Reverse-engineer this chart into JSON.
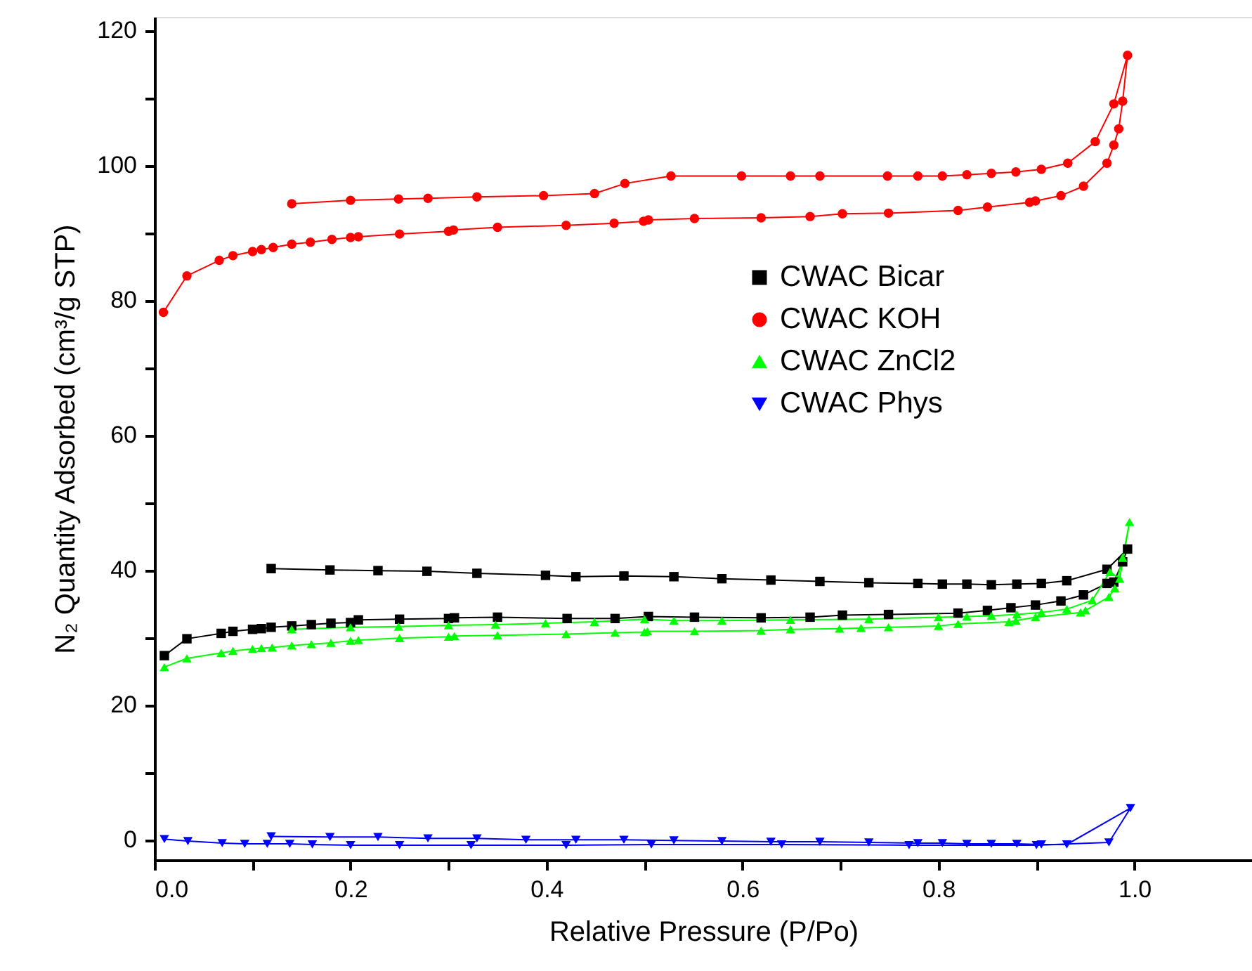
{
  "chart_data": {
    "type": "line",
    "xlabel": "Relative Pressure (P/Po)",
    "ylabel": "N₂ Quantity Adsorbed (cm³/g STP)",
    "xlim": [
      0,
      1.12
    ],
    "ylim": [
      -3,
      122
    ],
    "xticks": [
      {
        "value": 0,
        "label": "0.0"
      },
      {
        "value": 0.1,
        "label": null
      },
      {
        "value": 0.2,
        "label": "0.2"
      },
      {
        "value": 0.3,
        "label": null
      },
      {
        "value": 0.4,
        "label": "0.4"
      },
      {
        "value": 0.5,
        "label": null
      },
      {
        "value": 0.6,
        "label": "0.6"
      },
      {
        "value": 0.7,
        "label": null
      },
      {
        "value": 0.8,
        "label": "0.8"
      },
      {
        "value": 0.9,
        "label": null
      },
      {
        "value": 1.0,
        "label": "1.0"
      }
    ],
    "yticks": [
      0,
      {
        "value": 10,
        "label": null
      },
      20,
      {
        "value": 30,
        "label": null
      },
      40,
      {
        "value": 50,
        "label": null
      },
      60,
      {
        "value": 70,
        "label": null
      },
      80,
      {
        "value": 90,
        "label": null
      },
      100,
      {
        "value": 110,
        "label": null
      },
      120
    ],
    "grid": false,
    "legend": "right",
    "line_style": "solid",
    "series": [
      {
        "name": "CWAC Bicar",
        "color": "#000000",
        "marker": "square",
        "x": [
          0.01,
          0.033,
          0.068,
          0.08,
          0.1,
          0.109,
          0.119,
          0.14,
          0.16,
          0.18,
          0.2,
          0.208,
          0.25,
          0.3,
          0.306,
          0.35,
          0.421,
          0.47,
          0.504,
          0.551,
          0.619,
          0.669,
          0.702,
          0.749,
          0.82,
          0.85,
          0.874,
          0.899,
          0.925,
          0.948,
          0.972,
          0.979,
          0.988,
          0.993,
          0.972,
          0.931,
          0.905,
          0.88,
          0.854,
          0.829,
          0.804,
          0.779,
          0.729,
          0.679,
          0.629,
          0.579,
          0.53,
          0.479,
          0.43,
          0.399,
          0.329,
          0.278,
          0.228,
          0.179,
          0.119
        ],
        "values": [
          27.3,
          29.8,
          30.6,
          30.9,
          31.2,
          31.3,
          31.5,
          31.7,
          31.9,
          32.1,
          32.2,
          32.6,
          32.7,
          32.8,
          32.9,
          33.0,
          32.8,
          32.8,
          33.1,
          33.0,
          32.9,
          33.0,
          33.3,
          33.4,
          33.6,
          34.0,
          34.4,
          34.8,
          35.4,
          36.3,
          38.0,
          38.2,
          41.2,
          43.1,
          40.1,
          38.4,
          38.0,
          37.9,
          37.8,
          37.9,
          37.9,
          38.0,
          38.1,
          38.3,
          38.5,
          38.7,
          39.0,
          39.1,
          39.0,
          39.2,
          39.5,
          39.8,
          39.9,
          40.0,
          40.2
        ]
      },
      {
        "name": "CWAC KOH",
        "color": "#ff0000",
        "marker": "circle",
        "x": [
          0.009,
          0.033,
          0.066,
          0.08,
          0.1,
          0.109,
          0.121,
          0.14,
          0.159,
          0.181,
          0.2,
          0.208,
          0.25,
          0.3,
          0.305,
          0.35,
          0.42,
          0.469,
          0.499,
          0.504,
          0.551,
          0.619,
          0.669,
          0.702,
          0.749,
          0.82,
          0.85,
          0.893,
          0.899,
          0.925,
          0.948,
          0.972,
          0.979,
          0.984,
          0.988,
          0.993,
          0.979,
          0.96,
          0.932,
          0.905,
          0.879,
          0.854,
          0.829,
          0.804,
          0.779,
          0.748,
          0.679,
          0.649,
          0.599,
          0.527,
          0.48,
          0.449,
          0.397,
          0.329,
          0.279,
          0.249,
          0.2,
          0.14
        ],
        "values": [
          78.2,
          83.6,
          85.9,
          86.6,
          87.2,
          87.5,
          87.8,
          88.3,
          88.6,
          89.0,
          89.3,
          89.4,
          89.8,
          90.2,
          90.4,
          90.8,
          91.1,
          91.4,
          91.7,
          91.9,
          92.1,
          92.2,
          92.4,
          92.8,
          92.9,
          93.3,
          93.8,
          94.5,
          94.7,
          95.5,
          96.9,
          100.3,
          103.0,
          105.4,
          109.5,
          116.3,
          109.1,
          103.5,
          100.3,
          99.4,
          99.0,
          98.8,
          98.6,
          98.4,
          98.4,
          98.4,
          98.4,
          98.4,
          98.4,
          98.4,
          97.3,
          95.8,
          95.5,
          95.3,
          95.1,
          95.0,
          94.8,
          94.3
        ]
      },
      {
        "name": "CWAC ZnCl2",
        "color": "#00ff00",
        "marker": "triangle",
        "x": [
          0.01,
          0.033,
          0.068,
          0.08,
          0.1,
          0.109,
          0.12,
          0.14,
          0.16,
          0.18,
          0.2,
          0.208,
          0.25,
          0.3,
          0.306,
          0.35,
          0.42,
          0.47,
          0.5,
          0.503,
          0.551,
          0.619,
          0.649,
          0.699,
          0.721,
          0.749,
          0.8,
          0.82,
          0.872,
          0.879,
          0.899,
          0.945,
          0.95,
          0.974,
          0.98,
          0.988,
          0.995,
          0.985,
          0.975,
          0.957,
          0.931,
          0.905,
          0.88,
          0.854,
          0.829,
          0.8,
          0.729,
          0.649,
          0.579,
          0.53,
          0.5,
          0.449,
          0.399,
          0.348,
          0.3,
          0.249,
          0.2,
          0.14
        ],
        "values": [
          25.6,
          26.9,
          27.7,
          28.0,
          28.3,
          28.4,
          28.5,
          28.8,
          29.0,
          29.2,
          29.5,
          29.6,
          29.9,
          30.1,
          30.2,
          30.3,
          30.5,
          30.7,
          30.8,
          30.9,
          30.9,
          31.0,
          31.2,
          31.3,
          31.4,
          31.5,
          31.7,
          32.0,
          32.3,
          32.5,
          33.0,
          33.7,
          34.0,
          36.0,
          37.3,
          41.8,
          47.1,
          38.7,
          39.7,
          35.5,
          34.2,
          33.7,
          33.4,
          33.2,
          33.1,
          33.0,
          32.7,
          32.6,
          32.5,
          32.5,
          32.7,
          32.3,
          32.1,
          31.9,
          31.8,
          31.6,
          31.5,
          31.2
        ]
      },
      {
        "name": "CWAC Phys",
        "color": "#0000ff",
        "marker": "triangle-down",
        "x": [
          0.01,
          0.034,
          0.069,
          0.092,
          0.115,
          0.138,
          0.161,
          0.2,
          0.25,
          0.323,
          0.42,
          0.507,
          0.64,
          0.77,
          0.9,
          0.974,
          0.996,
          0.931,
          0.905,
          0.88,
          0.854,
          0.829,
          0.804,
          0.779,
          0.729,
          0.679,
          0.629,
          0.579,
          0.53,
          0.479,
          0.43,
          0.379,
          0.329,
          0.279,
          0.228,
          0.179,
          0.119
        ],
        "values": [
          0.1,
          -0.2,
          -0.5,
          -0.6,
          -0.6,
          -0.6,
          -0.7,
          -0.8,
          -0.8,
          -0.8,
          -0.8,
          -0.7,
          -0.7,
          -0.8,
          -0.8,
          -0.4,
          4.7,
          -0.7,
          -0.7,
          -0.6,
          -0.6,
          -0.6,
          -0.5,
          -0.5,
          -0.4,
          -0.3,
          -0.3,
          -0.2,
          -0.1,
          0.0,
          0.0,
          0.0,
          0.2,
          0.2,
          0.4,
          0.4,
          0.5
        ]
      }
    ]
  }
}
